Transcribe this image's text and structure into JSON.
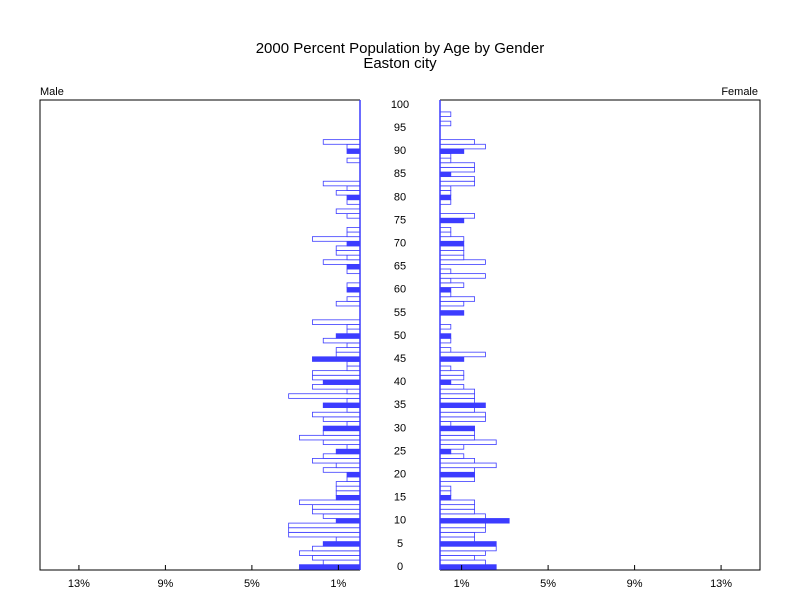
{
  "chart_data": {
    "type": "pyramid",
    "title": "2000 Percent Population by Age by Gender",
    "subtitle": "Easton city",
    "categories": [
      0,
      null,
      null,
      null,
      null,
      5,
      null,
      null,
      null,
      null,
      10,
      null,
      null,
      null,
      null,
      15,
      null,
      null,
      null,
      null,
      20,
      null,
      null,
      null,
      null,
      25,
      null,
      null,
      null,
      null,
      30,
      null,
      null,
      null,
      null,
      35,
      null,
      null,
      null,
      null,
      40,
      null,
      null,
      null,
      null,
      45,
      null,
      null,
      null,
      null,
      50,
      null,
      null,
      null,
      null,
      55,
      null,
      null,
      null,
      null,
      60,
      null,
      null,
      null,
      null,
      65,
      null,
      null,
      null,
      null,
      70,
      null,
      null,
      null,
      null,
      75,
      null,
      null,
      null,
      null,
      80,
      null,
      null,
      null,
      null,
      85,
      null,
      null,
      null,
      null,
      90,
      null,
      null,
      null,
      null,
      95,
      null,
      null,
      null,
      null,
      100
    ],
    "series": [
      {
        "name": "Male",
        "color": "#3c3cff",
        "values": [
          2.8,
          1.7,
          2.2,
          2.8,
          2.2,
          1.7,
          1.1,
          3.3,
          3.3,
          3.3,
          1.1,
          1.7,
          2.2,
          2.2,
          2.8,
          1.1,
          1.1,
          1.1,
          1.1,
          0.6,
          0.6,
          1.7,
          1.1,
          2.2,
          1.7,
          1.1,
          0.6,
          1.7,
          2.8,
          1.7,
          1.7,
          0.6,
          1.7,
          2.2,
          0.6,
          1.7,
          0.6,
          3.3,
          0.6,
          2.2,
          1.7,
          2.2,
          2.2,
          0.6,
          0.6,
          2.2,
          1.1,
          1.1,
          0.6,
          1.7,
          1.1,
          0.6,
          0.6,
          2.2,
          0,
          0,
          0,
          1.1,
          0.6,
          0,
          0.6,
          0.6,
          0,
          0,
          0.6,
          0.6,
          1.7,
          0.6,
          1.1,
          1.1,
          0.6,
          2.2,
          0.6,
          0.6,
          0,
          0,
          0.6,
          1.1,
          0,
          0.6,
          0.6,
          1.1,
          0.6,
          1.7,
          0,
          0,
          0,
          0,
          0.6,
          0,
          0.6,
          0.6,
          1.7,
          0,
          0,
          0,
          0,
          0,
          0,
          0,
          0
        ]
      },
      {
        "name": "Female",
        "color": "#3c3cff",
        "values": [
          2.6,
          2.1,
          1.6,
          2.1,
          2.6,
          2.6,
          1.6,
          1.6,
          2.1,
          2.1,
          3.2,
          2.1,
          1.6,
          1.6,
          1.6,
          0.5,
          0.5,
          0.5,
          0,
          1.6,
          1.6,
          1.6,
          2.6,
          1.6,
          1.1,
          0.5,
          1.1,
          2.6,
          1.6,
          1.6,
          1.6,
          0.5,
          2.1,
          2.1,
          1.6,
          2.1,
          1.6,
          1.6,
          1.6,
          1.1,
          0.5,
          1.1,
          1.1,
          0.5,
          0,
          1.1,
          2.1,
          0.5,
          0,
          0.5,
          0.5,
          0,
          0.5,
          0,
          0,
          1.1,
          0,
          1.1,
          1.6,
          0.5,
          0.5,
          1.1,
          0.5,
          2.1,
          0.5,
          0,
          2.1,
          1.1,
          1.1,
          1.1,
          1.1,
          1.1,
          0.5,
          0.5,
          0,
          1.1,
          1.6,
          0,
          0,
          0.5,
          0.5,
          0.5,
          0.5,
          1.6,
          1.6,
          0.5,
          1.6,
          1.6,
          0.5,
          0.5,
          1.1,
          2.1,
          1.6,
          0,
          0,
          0,
          0.5,
          0,
          0.5,
          0,
          0
        ]
      }
    ],
    "xlim": [
      0,
      14.8
    ],
    "xticks": [
      {
        "value": 1,
        "label": "1%"
      },
      {
        "value": 5,
        "label": "5%"
      },
      {
        "value": 9,
        "label": "9%"
      },
      {
        "value": 13,
        "label": "13%"
      }
    ]
  }
}
